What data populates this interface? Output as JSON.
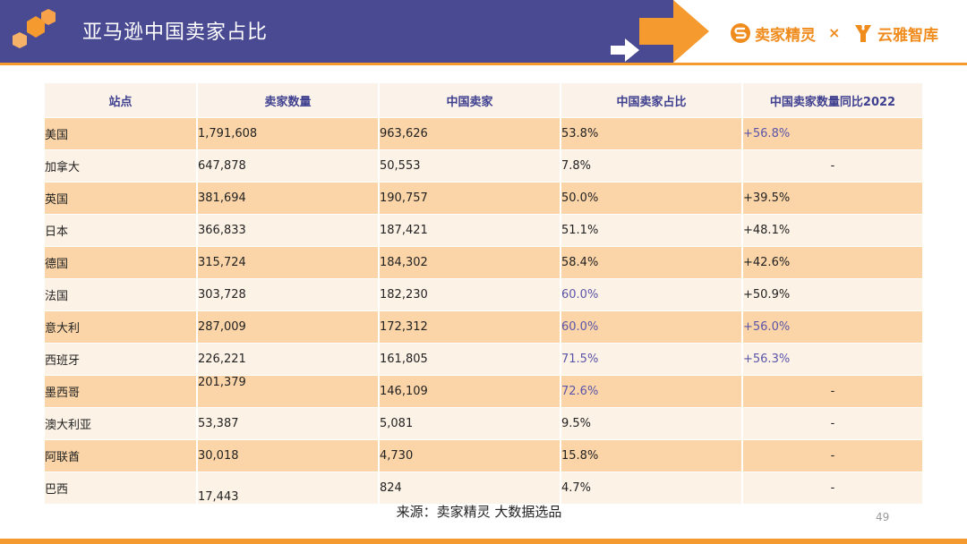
{
  "header": {
    "title": "亚马逊中国卖家占比",
    "brand_left": "卖家精灵",
    "brand_separator": "×",
    "brand_right": "云雅智库"
  },
  "table": {
    "columns": [
      "站点",
      "卖家数量",
      "中国卖家",
      "中国卖家占比",
      "中国卖家数量同比2022"
    ],
    "rows": [
      {
        "site": "美国",
        "sellers": "1,791,608",
        "cn_sellers": "963,626",
        "cn_share": "53.8%",
        "yoy": "+56.8%"
      },
      {
        "site": "加拿大",
        "sellers": "647,878",
        "cn_sellers": "50,553",
        "cn_share": "7.8%",
        "yoy": "-"
      },
      {
        "site": "英国",
        "sellers": "381,694",
        "cn_sellers": "190,757",
        "cn_share": "50.0%",
        "yoy": "+39.5%"
      },
      {
        "site": "日本",
        "sellers": "366,833",
        "cn_sellers": "187,421",
        "cn_share": "51.1%",
        "yoy": "+48.1%"
      },
      {
        "site": "德国",
        "sellers": "315,724",
        "cn_sellers": "184,302",
        "cn_share": "58.4%",
        "yoy": "+42.6%"
      },
      {
        "site": "法国",
        "sellers": "303,728",
        "cn_sellers": "182,230",
        "cn_share": "60.0%",
        "yoy": "+50.9%"
      },
      {
        "site": "意大利",
        "sellers": "287,009",
        "cn_sellers": "172,312",
        "cn_share": "60.0%",
        "yoy": "+56.0%"
      },
      {
        "site": "西班牙",
        "sellers": "226,221",
        "cn_sellers": "161,805",
        "cn_share": "71.5%",
        "yoy": "+56.3%"
      },
      {
        "site": "墨西哥",
        "sellers": "201,379",
        "cn_sellers": "146,109",
        "cn_share": "72.6%",
        "yoy": "-"
      },
      {
        "site": "澳大利亚",
        "sellers": "53,387",
        "cn_sellers": "5,081",
        "cn_share": "9.5%",
        "yoy": "-"
      },
      {
        "site": "阿联酋",
        "sellers": "30,018",
        "cn_sellers": "4,730",
        "cn_share": "15.8%",
        "yoy": "-"
      },
      {
        "site": "巴西",
        "sellers": "17,443",
        "cn_sellers": "824",
        "cn_share": "4.7%",
        "yoy": "-"
      }
    ]
  },
  "footer": {
    "source": "来源：卖家精灵 大数据选品",
    "page_number": "49"
  },
  "colors": {
    "header_band": "#4a4a93",
    "accent_orange": "#f59a2e",
    "row_odd": "#fbd5a8",
    "row_even": "#fdf2e6",
    "highlight_text": "#5a55a8"
  }
}
